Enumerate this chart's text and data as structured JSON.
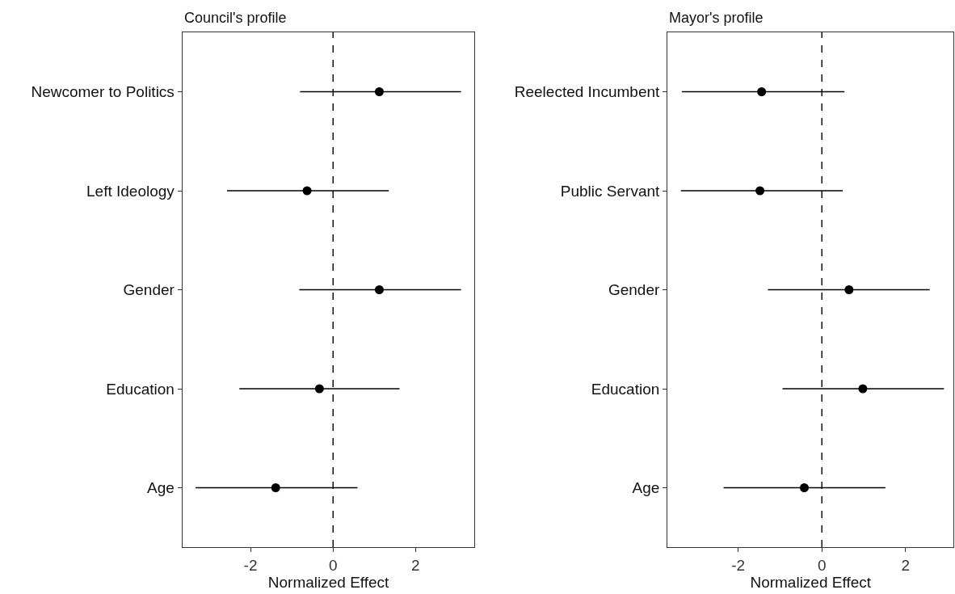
{
  "chart_data": [
    {
      "type": "scatter",
      "orientation": "horizontal",
      "title": "Council's profile",
      "xlabel": "Normalized Effect",
      "categories": [
        "Newcomer to Politics",
        "Left Ideology",
        "Gender",
        "Education",
        "Age"
      ],
      "values": [
        1.12,
        -0.63,
        1.12,
        -0.33,
        -1.39
      ],
      "errors": [
        [
          -0.8,
          3.1
        ],
        [
          -2.57,
          1.35
        ],
        [
          -0.82,
          3.1
        ],
        [
          -2.27,
          1.61
        ],
        [
          -3.33,
          0.59
        ]
      ],
      "color": "#000000",
      "marker": "circle",
      "xlim": [
        -3.65,
        3.43
      ],
      "xticks": [
        -2,
        0,
        2
      ],
      "ref_lines": [
        {
          "axis": "x",
          "value": 0,
          "line_style": "dashed",
          "color": "#000000"
        }
      ]
    },
    {
      "type": "scatter",
      "orientation": "horizontal",
      "title": "Mayor's profile",
      "xlabel": "Normalized Effect",
      "categories": [
        "Reelected Incumbent",
        "Public Servant",
        "Gender",
        "Education",
        "Age"
      ],
      "values": [
        -1.44,
        -1.48,
        0.65,
        0.98,
        -0.42
      ],
      "errors": [
        [
          -3.35,
          0.54
        ],
        [
          -3.37,
          0.5
        ],
        [
          -1.29,
          2.58
        ],
        [
          -0.94,
          2.92
        ],
        [
          -2.35,
          1.52
        ]
      ],
      "color": "#000000",
      "marker": "circle",
      "xlim": [
        -3.69,
        3.15
      ],
      "xticks": [
        -2,
        0,
        2
      ],
      "ref_lines": [
        {
          "axis": "x",
          "value": 0,
          "line_style": "dashed",
          "color": "#000000"
        }
      ]
    }
  ]
}
